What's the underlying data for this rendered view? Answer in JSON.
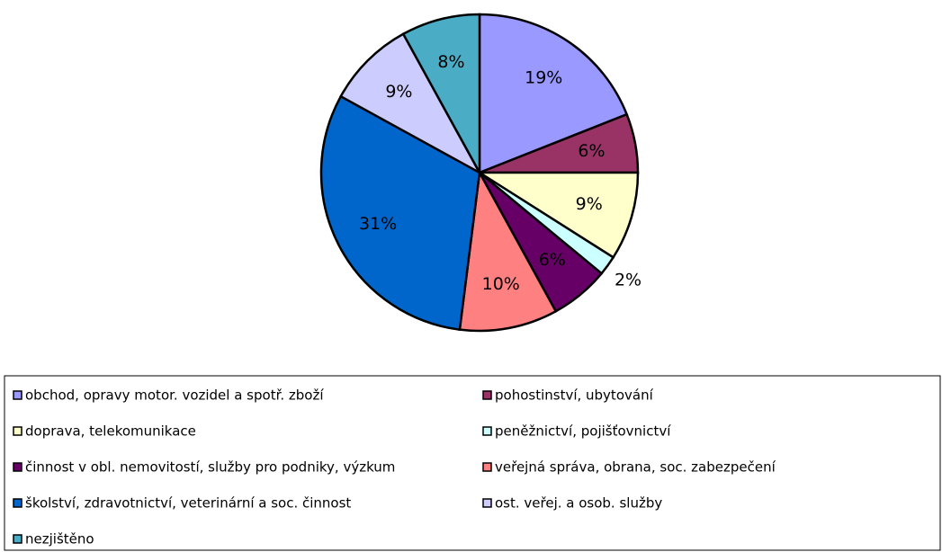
{
  "chart_data": {
    "type": "pie",
    "categories": [
      "obchod, opravy motor. vozidel a spotř. zboží",
      "pohostinství, ubytování",
      "doprava, telekomunikace",
      "peněžnictví, pojišťovnictví",
      "činnost v obl. nemovitostí, služby pro podniky, výzkum",
      "veřejná správa, obrana, soc. zabezpečení",
      "školství, zdravotnictví, veterinární a soc. činnost",
      "ost. veřej. a osob. služby",
      "nezjištěno"
    ],
    "values": [
      19,
      6,
      9,
      2,
      6,
      10,
      31,
      9,
      8
    ],
    "value_labels": [
      "19%",
      "6%",
      "9%",
      "2%",
      "6%",
      "10%",
      "31%",
      "9%",
      "8%"
    ],
    "colors": [
      "#9999ff",
      "#993366",
      "#ffffcc",
      "#ccffff",
      "#660066",
      "#ff8080",
      "#0066cc",
      "#ccccff",
      "#4bacc6"
    ]
  }
}
